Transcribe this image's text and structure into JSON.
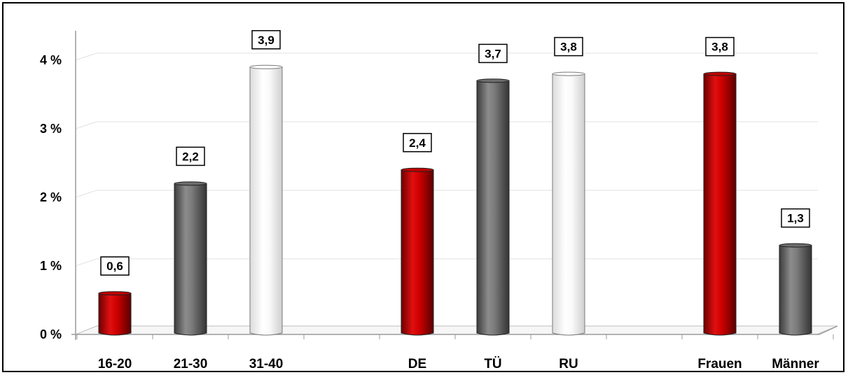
{
  "chart_data": {
    "type": "bar",
    "title": "",
    "xlabel": "",
    "ylabel": "",
    "ylim": [
      0,
      4
    ],
    "y_ticks": [
      {
        "value": 0,
        "label": "0 %"
      },
      {
        "value": 1,
        "label": "1 %"
      },
      {
        "value": 2,
        "label": "2 %"
      },
      {
        "value": 3,
        "label": "3 %"
      },
      {
        "value": 4,
        "label": "4 %"
      }
    ],
    "grid": true,
    "legend": "none",
    "slots": 11,
    "categories": [
      "16-20",
      "21-30",
      "31-40",
      "DE",
      "TÜ",
      "RU",
      "Frauen",
      "Männer"
    ],
    "slot_index": [
      0,
      1,
      2,
      4,
      5,
      6,
      8,
      9
    ],
    "values": [
      0.6,
      2.2,
      3.9,
      2.4,
      3.7,
      3.8,
      3.8,
      1.3
    ],
    "value_labels": [
      "0,6",
      "2,2",
      "3,9",
      "2,4",
      "3,7",
      "3,8",
      "3,8",
      "1,3"
    ],
    "bar_styles": [
      "red",
      "gray",
      "white",
      "red",
      "gray",
      "white",
      "red",
      "gray"
    ],
    "colors": {
      "red": "#c00000",
      "gray": "#6d6d6d",
      "white": "#f4f4f4"
    }
  }
}
